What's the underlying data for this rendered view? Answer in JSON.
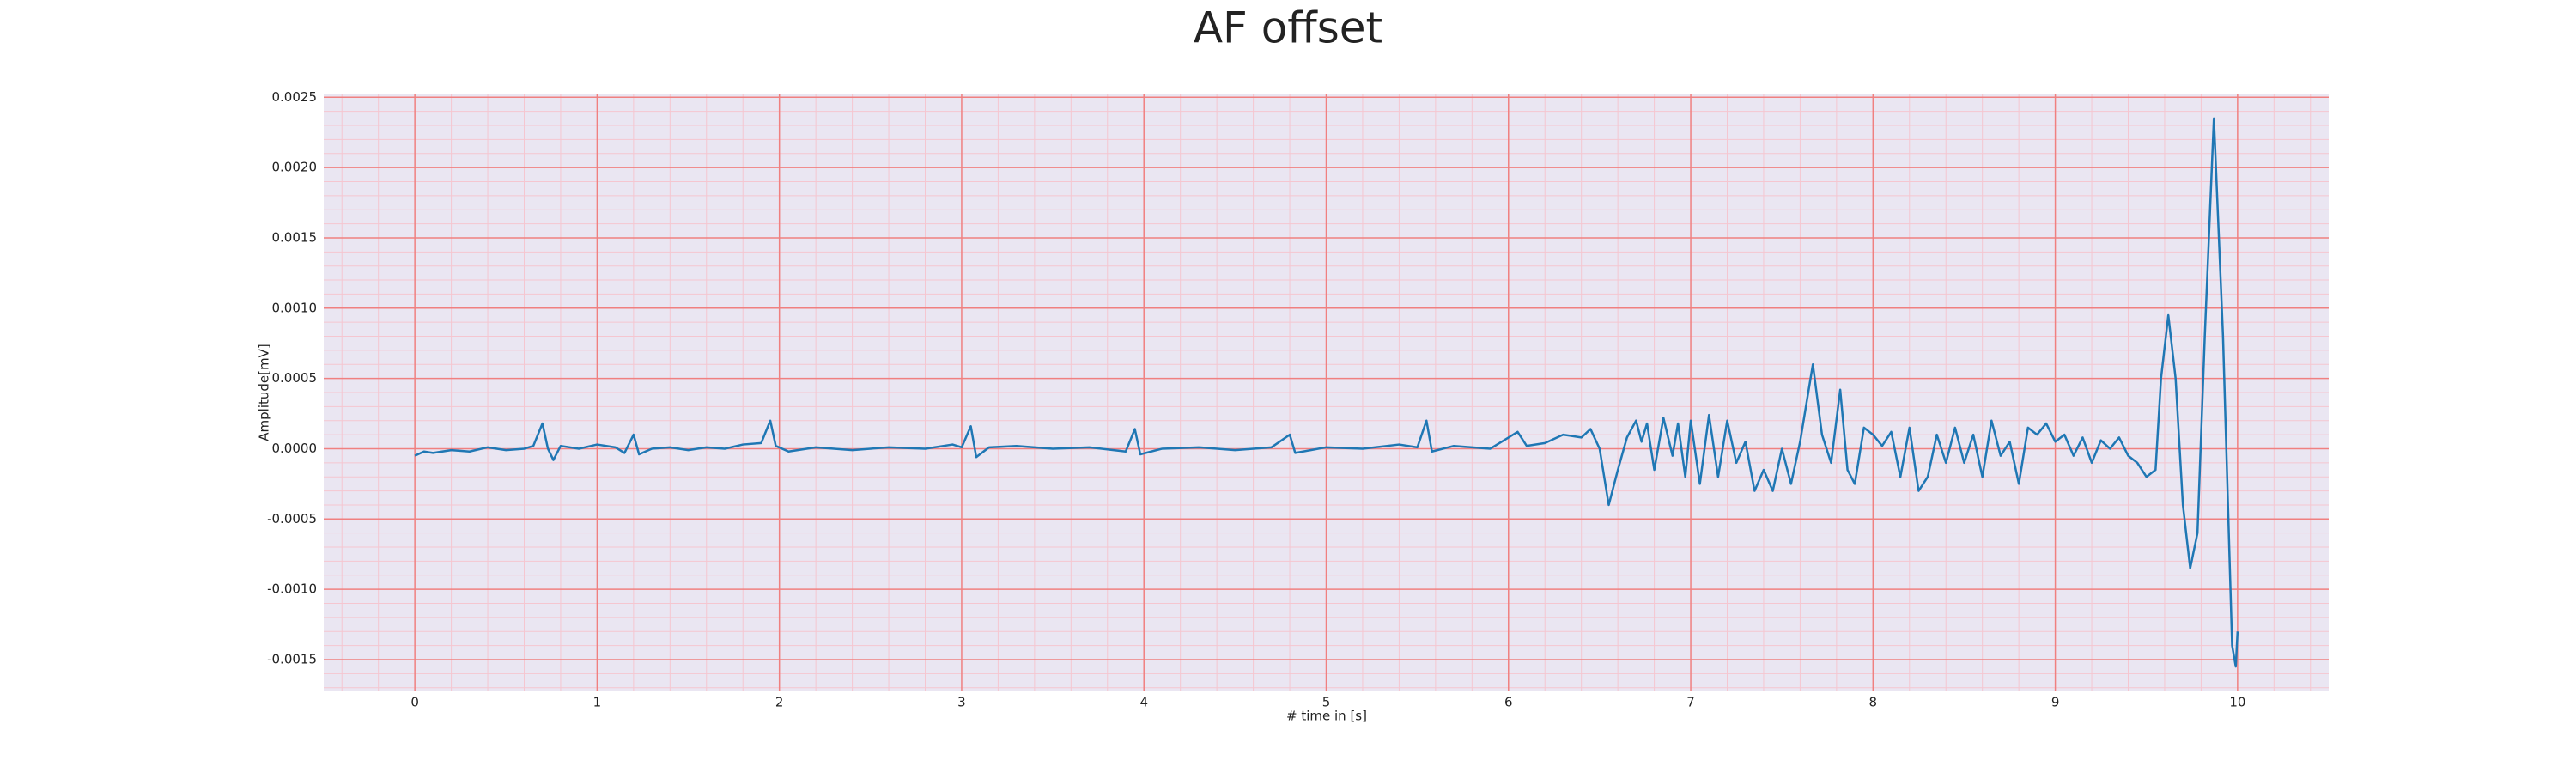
{
  "chart_data": {
    "type": "line",
    "title": "AF offset",
    "xlabel": "# time in [s]",
    "ylabel": "Amplitude[mV]",
    "color": "#1f77b4",
    "grid": true,
    "background": "#eae6f2",
    "grid_color": "#f08080",
    "minor_grid_color": "#f5c6d0",
    "x": [
      0,
      0.05,
      0.1,
      0.2,
      0.3,
      0.4,
      0.5,
      0.6,
      0.65,
      0.7,
      0.73,
      0.76,
      0.8,
      0.9,
      1.0,
      1.1,
      1.15,
      1.2,
      1.23,
      1.3,
      1.4,
      1.5,
      1.6,
      1.7,
      1.8,
      1.9,
      1.95,
      1.98,
      2.05,
      2.2,
      2.4,
      2.6,
      2.8,
      2.95,
      3.0,
      3.05,
      3.08,
      3.15,
      3.3,
      3.5,
      3.7,
      3.9,
      3.95,
      3.98,
      4.1,
      4.3,
      4.5,
      4.7,
      4.8,
      4.83,
      5.0,
      5.2,
      5.4,
      5.5,
      5.55,
      5.58,
      5.7,
      5.9,
      6.0,
      6.05,
      6.1,
      6.2,
      6.3,
      6.4,
      6.45,
      6.5,
      6.55,
      6.6,
      6.65,
      6.7,
      6.73,
      6.76,
      6.8,
      6.85,
      6.9,
      6.93,
      6.97,
      7.0,
      7.05,
      7.1,
      7.15,
      7.2,
      7.25,
      7.3,
      7.35,
      7.4,
      7.45,
      7.5,
      7.55,
      7.6,
      7.67,
      7.72,
      7.77,
      7.82,
      7.86,
      7.9,
      7.95,
      8.0,
      8.05,
      8.1,
      8.15,
      8.2,
      8.25,
      8.3,
      8.35,
      8.4,
      8.45,
      8.5,
      8.55,
      8.6,
      8.65,
      8.7,
      8.75,
      8.8,
      8.85,
      8.9,
      8.95,
      9.0,
      9.05,
      9.1,
      9.15,
      9.2,
      9.25,
      9.3,
      9.35,
      9.4,
      9.45,
      9.5,
      9.55,
      9.58,
      9.62,
      9.66,
      9.7,
      9.74,
      9.78,
      9.82,
      9.87,
      9.92,
      9.97,
      9.99,
      10.0
    ],
    "values": [
      -5e-05,
      -2e-05,
      -3e-05,
      -1e-05,
      -2e-05,
      1e-05,
      -1e-05,
      0,
      2e-05,
      0.00018,
      0,
      -8e-05,
      2e-05,
      0,
      3e-05,
      1e-05,
      -3e-05,
      0.0001,
      -4e-05,
      0,
      1e-05,
      -1e-05,
      1e-05,
      0,
      3e-05,
      4e-05,
      0.0002,
      2e-05,
      -2e-05,
      1e-05,
      -1e-05,
      1e-05,
      0,
      3e-05,
      1e-05,
      0.00016,
      -6e-05,
      1e-05,
      2e-05,
      0,
      1e-05,
      -2e-05,
      0.00014,
      -4e-05,
      0,
      1e-05,
      -1e-05,
      1e-05,
      0.0001,
      -3e-05,
      1e-05,
      0,
      3e-05,
      1e-05,
      0.0002,
      -2e-05,
      2e-05,
      0,
      8e-05,
      0.00012,
      2e-05,
      4e-05,
      0.0001,
      8e-05,
      0.00014,
      0,
      -0.0004,
      -0.00015,
      8e-05,
      0.0002,
      5e-05,
      0.00018,
      -0.00015,
      0.00022,
      -5e-05,
      0.00018,
      -0.0002,
      0.0002,
      -0.00025,
      0.00024,
      -0.0002,
      0.0002,
      -0.0001,
      5e-05,
      -0.0003,
      -0.00015,
      -0.0003,
      0,
      -0.00025,
      5e-05,
      0.0006,
      0.0001,
      -0.0001,
      0.00042,
      -0.00015,
      -0.00025,
      0.00015,
      0.0001,
      2e-05,
      0.00012,
      -0.0002,
      0.00015,
      -0.0003,
      -0.0002,
      0.0001,
      -0.0001,
      0.00015,
      -0.0001,
      0.0001,
      -0.0002,
      0.0002,
      -5e-05,
      5e-05,
      -0.00025,
      0.00015,
      0.0001,
      0.00018,
      5e-05,
      0.0001,
      -5e-05,
      8e-05,
      -0.0001,
      6e-05,
      0,
      8e-05,
      -5e-05,
      -0.0001,
      -0.0002,
      -0.00015,
      0.0005,
      0.00095,
      0.0005,
      -0.0004,
      -0.00085,
      -0.0006,
      0.0008,
      0.00235,
      0.0008,
      -0.0014,
      -0.00155,
      -0.0013
    ],
    "xlim": [
      -0.5,
      10.5
    ],
    "xticks": [
      0,
      1,
      2,
      3,
      4,
      5,
      6,
      7,
      8,
      9,
      10
    ],
    "ylim": [
      -0.00172,
      0.00252
    ],
    "yticks": [
      {
        "value": -0.0015,
        "label": "-0.0015"
      },
      {
        "value": -0.001,
        "label": "-0.0010"
      },
      {
        "value": -0.0005,
        "label": "-0.0005"
      },
      {
        "value": 0,
        "label": "0.0000"
      },
      {
        "value": 0.0005,
        "label": "0.0005"
      },
      {
        "value": 0.001,
        "label": "0.0010"
      },
      {
        "value": 0.0015,
        "label": "0.0015"
      },
      {
        "value": 0.002,
        "label": "0.0020"
      },
      {
        "value": 0.0025,
        "label": "0.0025"
      }
    ]
  }
}
